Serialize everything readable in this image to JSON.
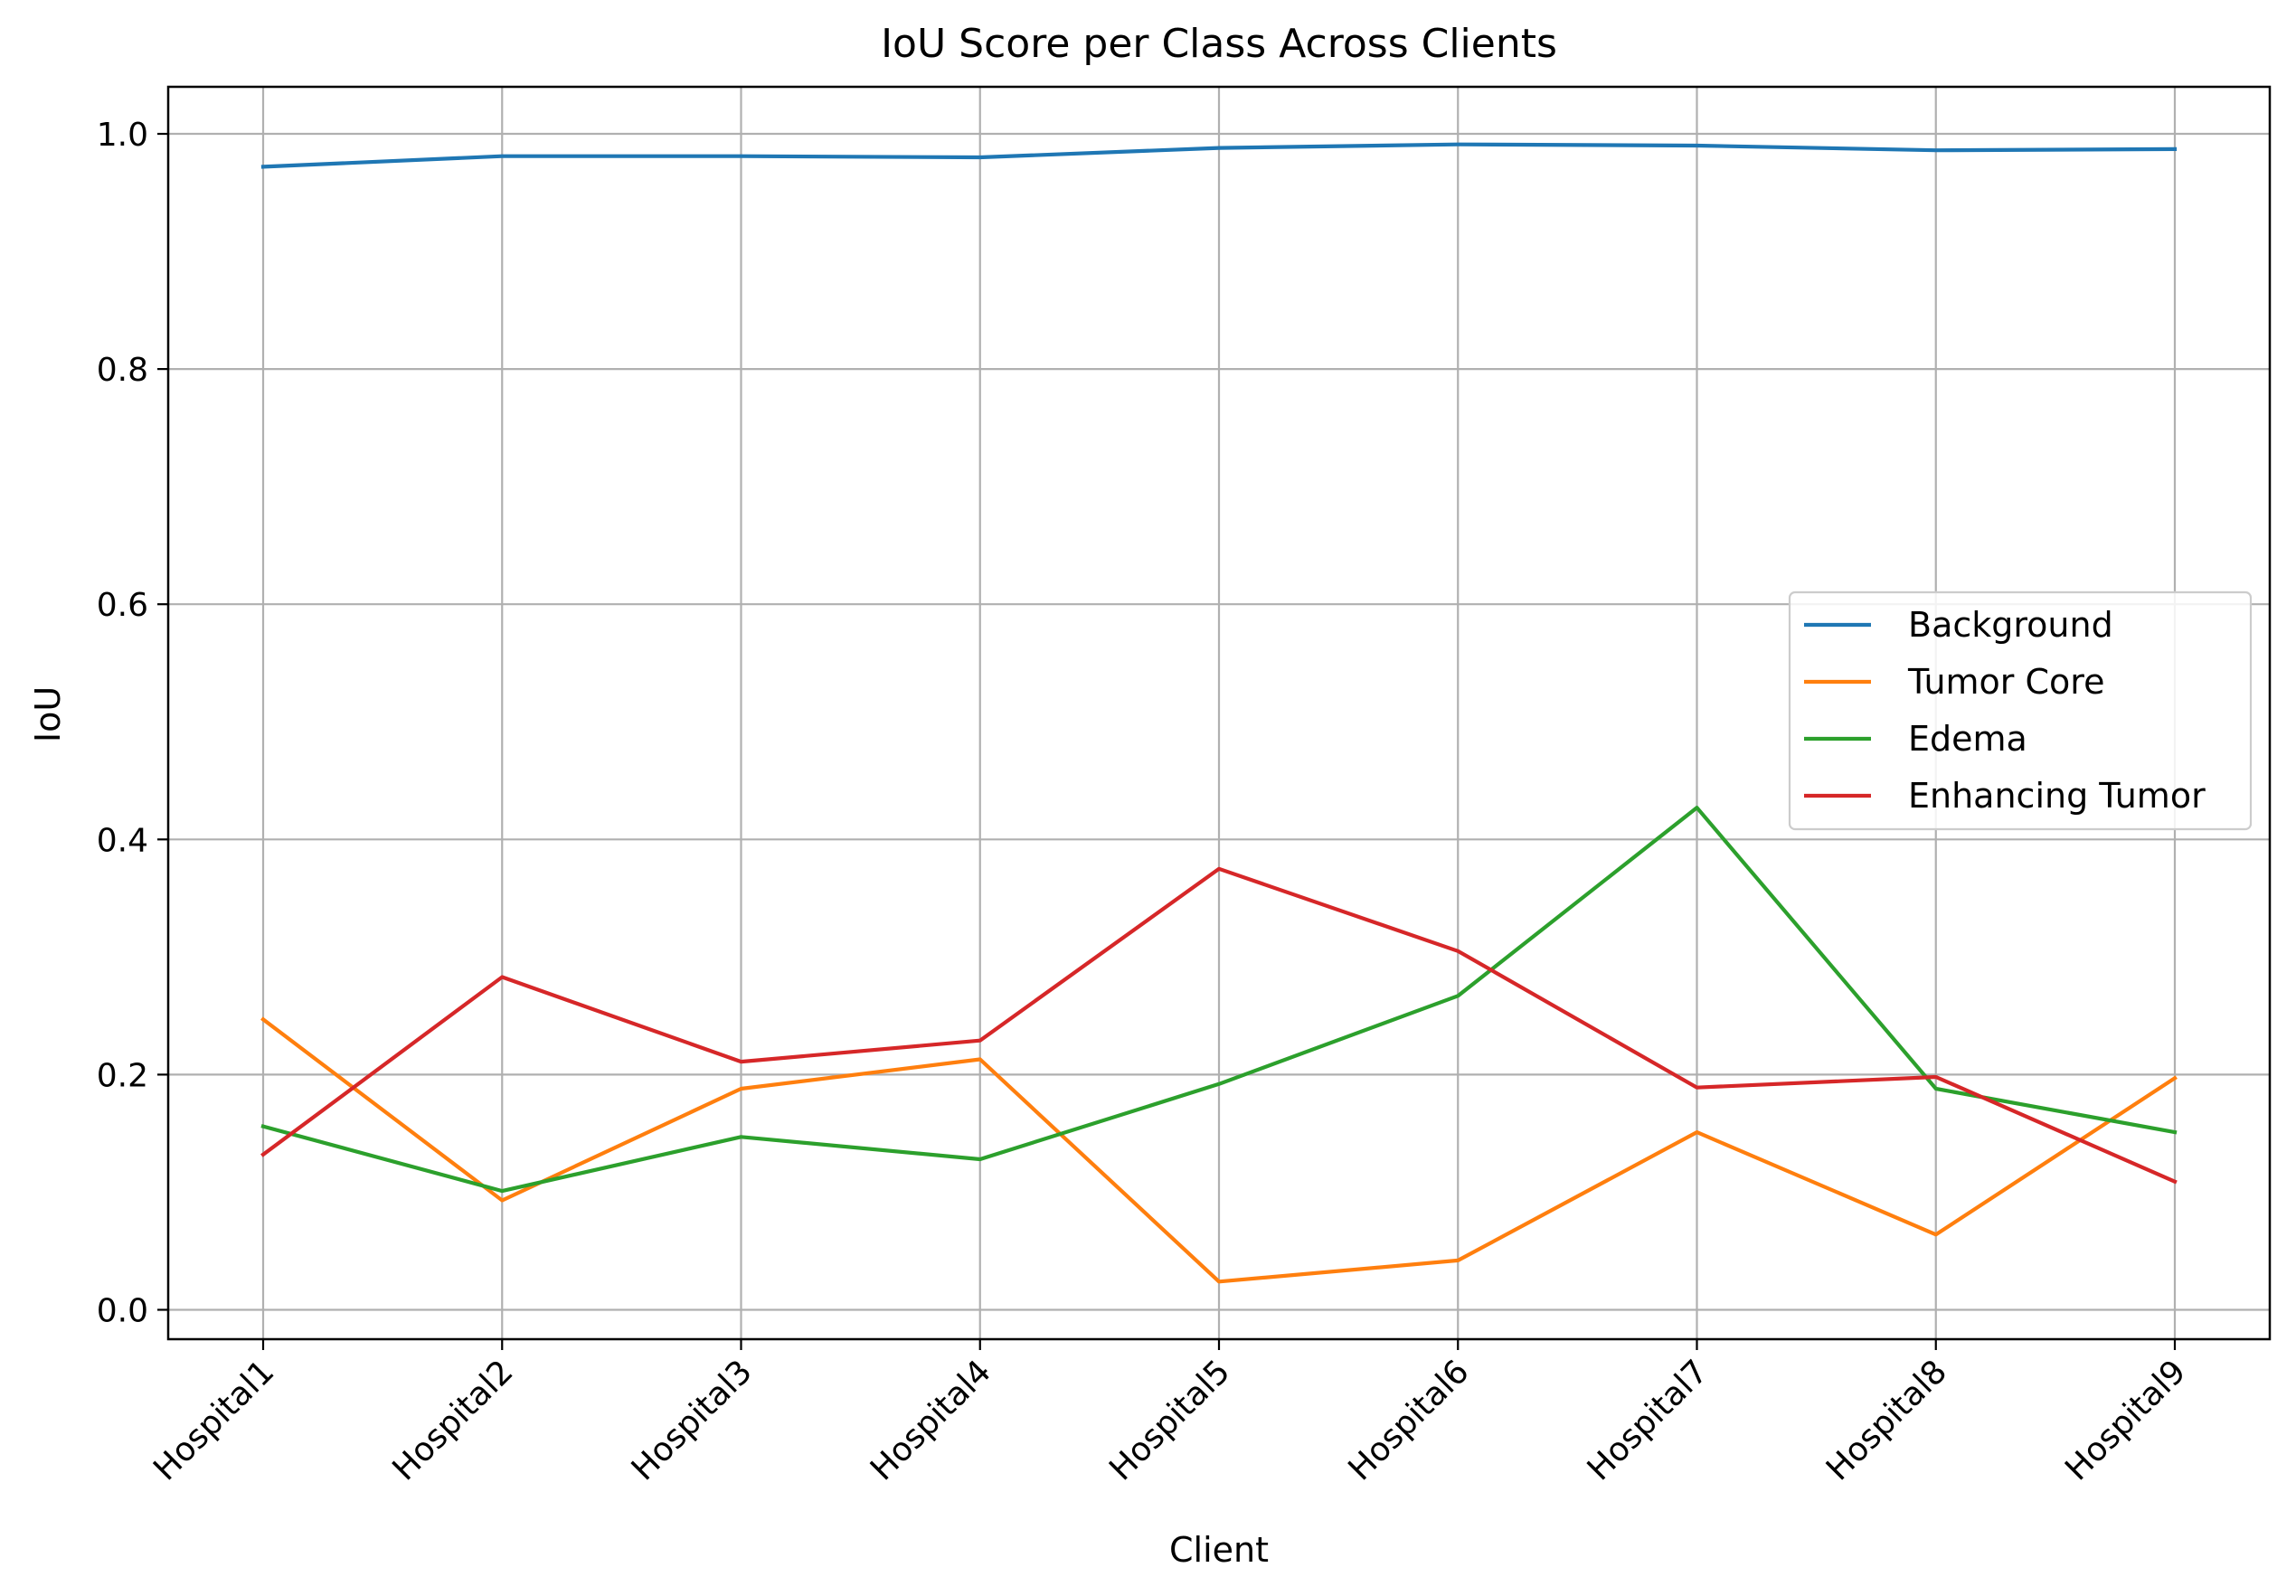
{
  "chart_data": {
    "type": "line",
    "title": "IoU Score per Class Across Clients",
    "xlabel": "Client",
    "ylabel": "IoU",
    "categories": [
      "Hospital1",
      "Hospital2",
      "Hospital3",
      "Hospital4",
      "Hospital5",
      "Hospital6",
      "Hospital7",
      "Hospital8",
      "Hospital9"
    ],
    "ylim": [
      -0.025,
      1.04
    ],
    "yticks": [
      0.0,
      0.2,
      0.4,
      0.6,
      0.8,
      1.0
    ],
    "ytick_labels": [
      "0.0",
      "0.2",
      "0.4",
      "0.6",
      "0.8",
      "1.0"
    ],
    "grid": true,
    "legend_position": "center-right",
    "series": [
      {
        "name": "Background",
        "color": "#1f77b4",
        "values": [
          0.972,
          0.981,
          0.981,
          0.98,
          0.988,
          0.991,
          0.99,
          0.986,
          0.987
        ]
      },
      {
        "name": "Tumor Core",
        "color": "#ff7f0e",
        "values": [
          0.247,
          0.093,
          0.188,
          0.213,
          0.024,
          0.042,
          0.151,
          0.064,
          0.197
        ]
      },
      {
        "name": "Edema",
        "color": "#2ca02c",
        "values": [
          0.156,
          0.101,
          0.147,
          0.128,
          0.192,
          0.267,
          0.427,
          0.188,
          0.151
        ]
      },
      {
        "name": "Enhancing Tumor",
        "color": "#d62728",
        "values": [
          0.132,
          0.283,
          0.211,
          0.229,
          0.375,
          0.305,
          0.189,
          0.198,
          0.109
        ]
      }
    ]
  }
}
